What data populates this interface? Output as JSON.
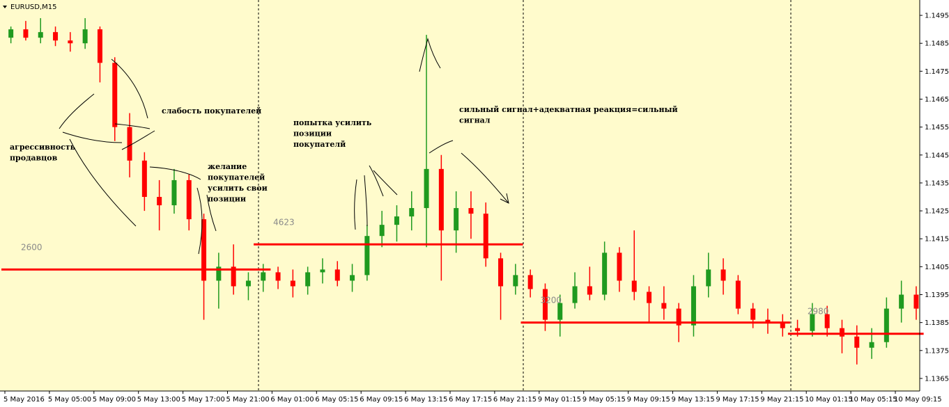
{
  "chart_data": {
    "type": "candlestick",
    "title": "EURUSD,M15",
    "up_color": "#1f9a1f",
    "down_color": "#ff0000",
    "level_color": "#ff0000",
    "ylim": [
      1.13605,
      1.15005
    ],
    "yticks": [
      1.1495,
      1.1485,
      1.1475,
      1.1465,
      1.1455,
      1.1445,
      1.1435,
      1.1425,
      1.1415,
      1.1405,
      1.1395,
      1.1385,
      1.1375,
      1.1365
    ],
    "categories": [
      "5 May 2016",
      null,
      null,
      "5 May 05:00",
      null,
      null,
      "5 May 09:00",
      null,
      null,
      "5 May 13:00",
      null,
      null,
      "5 May 17:00",
      null,
      null,
      "5 May 21:00",
      null,
      null,
      "6 May 01:00",
      null,
      null,
      "6 May 05:15",
      null,
      null,
      "6 May 09:15",
      null,
      null,
      "6 May 13:15",
      null,
      null,
      "6 May 17:15",
      null,
      null,
      "6 May 21:15",
      null,
      null,
      "9 May 01:15",
      null,
      null,
      "9 May 05:15",
      null,
      null,
      "9 May 09:15",
      null,
      null,
      "9 May 13:15",
      null,
      null,
      "9 May 17:15",
      null,
      null,
      "9 May 21:15",
      null,
      null,
      "10 May 01:15",
      null,
      null,
      "10 May 05:15",
      null,
      null,
      "10 May 09:15",
      null
    ],
    "open": [
      1.1487,
      1.149,
      1.1487,
      1.1489,
      1.1486,
      1.1485,
      1.149,
      1.1478,
      1.1455,
      1.1443,
      1.143,
      1.1427,
      1.1436,
      1.1422,
      1.14,
      1.1405,
      1.1398,
      1.14,
      1.1403,
      1.14,
      1.1398,
      1.1403,
      1.1404,
      1.14,
      1.1402,
      1.1416,
      1.142,
      1.1423,
      1.1426,
      1.144,
      1.1418,
      1.1426,
      1.1424,
      1.1408,
      1.1398,
      1.1402,
      1.1397,
      1.1386,
      1.1392,
      1.1398,
      1.1395,
      1.141,
      1.14,
      1.1396,
      1.1392,
      1.139,
      1.1384,
      1.1398,
      1.1404,
      1.14,
      1.139,
      1.1386,
      1.1385,
      1.1383,
      1.1382,
      1.1388,
      1.1383,
      1.138,
      1.1376,
      1.1378,
      1.139,
      1.1395
    ],
    "high": [
      1.1491,
      1.1493,
      1.1494,
      1.1491,
      1.1489,
      1.1494,
      1.1491,
      1.148,
      1.146,
      1.1446,
      1.1436,
      1.144,
      1.1438,
      1.1424,
      1.141,
      1.1413,
      1.1403,
      1.1406,
      1.1405,
      1.1404,
      1.1405,
      1.1408,
      1.1407,
      1.1406,
      1.142,
      1.1425,
      1.1427,
      1.1432,
      1.1488,
      1.1445,
      1.1432,
      1.1432,
      1.1428,
      1.141,
      1.1406,
      1.1404,
      1.1399,
      1.1395,
      1.1403,
      1.1405,
      1.1414,
      1.1412,
      1.1418,
      1.1398,
      1.1398,
      1.1392,
      1.1402,
      1.141,
      1.1408,
      1.1402,
      1.1392,
      1.139,
      1.1388,
      1.1386,
      1.1392,
      1.1391,
      1.1386,
      1.1384,
      1.1383,
      1.1394,
      1.14,
      1.1398
    ],
    "low": [
      1.1485,
      1.1486,
      1.1485,
      1.1484,
      1.1482,
      1.1483,
      1.1471,
      1.145,
      1.1437,
      1.1425,
      1.1418,
      1.1424,
      1.1418,
      1.1386,
      1.139,
      1.1395,
      1.1393,
      1.1396,
      1.1397,
      1.1394,
      1.1395,
      1.1399,
      1.1398,
      1.1396,
      1.14,
      1.1412,
      1.1414,
      1.1418,
      1.1412,
      1.14,
      1.141,
      1.1415,
      1.1405,
      1.1386,
      1.1395,
      1.1394,
      1.1382,
      1.138,
      1.139,
      1.1393,
      1.1393,
      1.1396,
      1.1393,
      1.1385,
      1.1386,
      1.1378,
      1.138,
      1.1394,
      1.1395,
      1.1388,
      1.1383,
      1.1381,
      1.138,
      1.138,
      1.138,
      1.138,
      1.1374,
      1.137,
      1.1372,
      1.1376,
      1.1385,
      1.1386
    ],
    "close": [
      1.149,
      1.1487,
      1.1489,
      1.1486,
      1.1485,
      1.149,
      1.1478,
      1.1455,
      1.1443,
      1.143,
      1.1427,
      1.1436,
      1.1422,
      1.14,
      1.1405,
      1.1398,
      1.14,
      1.1403,
      1.14,
      1.1398,
      1.1403,
      1.1404,
      1.14,
      1.1402,
      1.1416,
      1.142,
      1.1423,
      1.1426,
      1.144,
      1.1418,
      1.1426,
      1.1424,
      1.1408,
      1.1398,
      1.1402,
      1.1397,
      1.1386,
      1.1392,
      1.1398,
      1.1395,
      1.141,
      1.14,
      1.1396,
      1.1392,
      1.139,
      1.1384,
      1.1398,
      1.1404,
      1.14,
      1.139,
      1.1386,
      1.1385,
      1.1383,
      1.1382,
      1.1388,
      1.1383,
      1.138,
      1.1376,
      1.1378,
      1.139,
      1.1395,
      1.139
    ],
    "levels": [
      {
        "label": "2600",
        "value": 1.1404,
        "from": 0,
        "to": 17
      },
      {
        "label": "4623",
        "value": 1.1413,
        "from": 17,
        "to": 34
      },
      {
        "label": "3200",
        "value": 1.1385,
        "from": 35,
        "to": 52
      },
      {
        "label": "2980",
        "value": 1.1381,
        "from": 53,
        "to": 61
      }
    ],
    "annotations": [
      {
        "lines": [
          "слабость покупателей"
        ]
      },
      {
        "lines": [
          "агрессивность",
          "продавцов"
        ]
      },
      {
        "lines": [
          "желание",
          "покупателей",
          "усилить свои",
          "позиции"
        ]
      },
      {
        "lines": [
          "попытка усилить",
          "позиции",
          "покупателй"
        ]
      },
      {
        "lines": [
          "сильный сигнал+адекватная реакция=сильный",
          "сигнал"
        ]
      }
    ]
  }
}
